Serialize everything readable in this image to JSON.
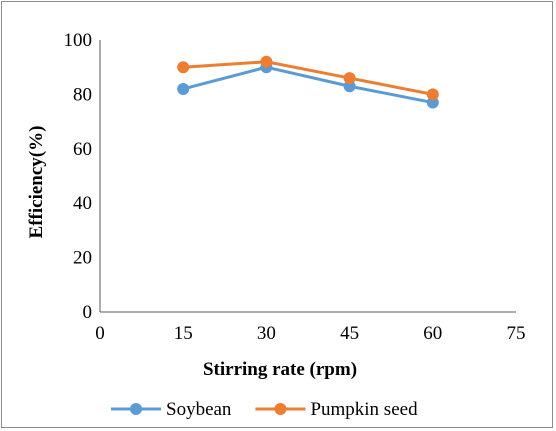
{
  "chart_data": {
    "type": "line",
    "title": "",
    "xlabel": "Stirring rate (rpm)",
    "ylabel": "Efficiency(%)",
    "xlim": [
      0,
      75
    ],
    "ylim": [
      0,
      100
    ],
    "xticks": [
      0,
      15,
      30,
      45,
      60,
      75
    ],
    "yticks": [
      0,
      20,
      40,
      60,
      80,
      100
    ],
    "grid": false,
    "legend_position": "bottom",
    "series": [
      {
        "name": "Soybean",
        "color": "#5B9BD5",
        "x": [
          15,
          30,
          45,
          60
        ],
        "y": [
          82,
          90,
          83,
          77
        ]
      },
      {
        "name": "Pumpkin seed",
        "color": "#ED7D31",
        "x": [
          15,
          30,
          45,
          60
        ],
        "y": [
          90,
          92,
          86,
          80
        ]
      }
    ]
  }
}
